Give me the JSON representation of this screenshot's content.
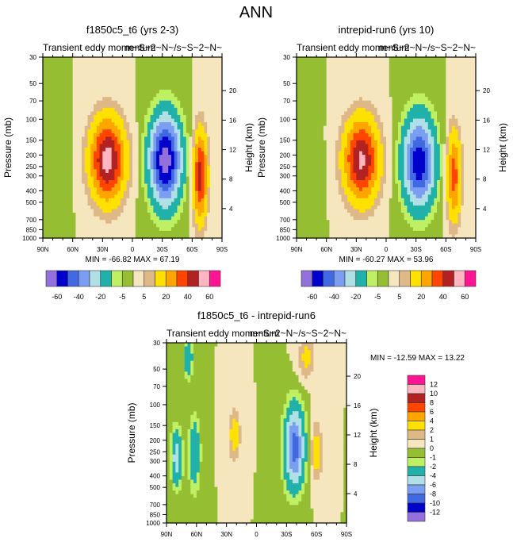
{
  "page_title": "ANN",
  "colors": {
    "levels_palette": [
      "#9370DB",
      "#0000CD",
      "#4169E1",
      "#7B9EF2",
      "#B0E0E6",
      "#20B2AA",
      "#BFF064",
      "#96BE32",
      "#F5E6BE",
      "#DEB887",
      "#FFE100",
      "#FFA500",
      "#FF4500",
      "#B22222",
      "#FFB6C1",
      "#FF1493"
    ]
  },
  "chart_data": [
    {
      "type": "heatmap",
      "id": "panel-1",
      "title": "f1850c5_t6 (yrs 2-3)",
      "subtitle_left": "Transient eddy momentum",
      "subtitle_right": "m~S~2~N~/s~S~2~N~",
      "xlabel": "",
      "ylabel": "Pressure (mb)",
      "ylabel_right": "Height (km)",
      "x_ticks": [
        "90N",
        "60N",
        "30N",
        "0",
        "30S",
        "60S",
        "90S"
      ],
      "x_range": [
        90,
        -90
      ],
      "y_ticks": [
        30,
        50,
        70,
        100,
        150,
        200,
        250,
        300,
        400,
        500,
        700,
        850,
        1000
      ],
      "y_range": [
        30,
        1000
      ],
      "y_scale": "log",
      "y_right_ticks": [
        4,
        8,
        12,
        16,
        20
      ],
      "stats": "MIN = -66.82  MAX =  67.19",
      "contour_levels": [
        -60,
        -50,
        -40,
        -30,
        -20,
        -10,
        -5,
        0,
        5,
        10,
        20,
        30,
        40,
        50,
        60
      ],
      "colorbar_labels": [
        "-60",
        "-40",
        "-20",
        "-5",
        "5",
        "20",
        "40",
        "60"
      ],
      "colorbar_orientation": "horizontal",
      "features": [
        {
          "lat": 25,
          "p": 220,
          "peak": 55,
          "sx": 12,
          "sy": 0.55
        },
        {
          "lat": -33,
          "p": 220,
          "peak": -66,
          "sx": 11,
          "sy": 0.6
        },
        {
          "lat": -68,
          "p": 300,
          "peak": 45,
          "sx": 5,
          "sy": 0.6
        },
        {
          "lat": 72,
          "p": 300,
          "peak": -4,
          "sx": 6,
          "sy": 0.7
        }
      ]
    },
    {
      "type": "heatmap",
      "id": "panel-2",
      "title": "intrepid-run6 (yrs 10)",
      "subtitle_left": "Transient eddy momentum",
      "subtitle_right": "m~S~2~N~/s~S~2~N~",
      "xlabel": "",
      "ylabel": "Pressure (mb)",
      "ylabel_right": "Height (km)",
      "x_ticks": [
        "90N",
        "60N",
        "30N",
        "0",
        "30S",
        "60S",
        "90S"
      ],
      "x_range": [
        90,
        -90
      ],
      "y_ticks": [
        30,
        50,
        70,
        100,
        150,
        200,
        250,
        300,
        400,
        500,
        700,
        850,
        1000
      ],
      "y_range": [
        30,
        1000
      ],
      "y_scale": "log",
      "y_right_ticks": [
        4,
        8,
        12,
        16,
        20
      ],
      "stats": "MIN = -60.27  MAX =  53.96",
      "contour_levels": [
        -60,
        -50,
        -40,
        -30,
        -20,
        -10,
        -5,
        0,
        5,
        10,
        20,
        30,
        40,
        50,
        60
      ],
      "colorbar_labels": [
        "-60",
        "-40",
        "-20",
        "-5",
        "5",
        "20",
        "40",
        "60"
      ],
      "colorbar_orientation": "horizontal",
      "features": [
        {
          "lat": 25,
          "p": 220,
          "peak": 52,
          "sx": 12,
          "sy": 0.55
        },
        {
          "lat": -33,
          "p": 230,
          "peak": -58,
          "sx": 11,
          "sy": 0.6
        },
        {
          "lat": -68,
          "p": 300,
          "peak": 35,
          "sx": 5,
          "sy": 0.6
        },
        {
          "lat": 72,
          "p": 300,
          "peak": -3,
          "sx": 6,
          "sy": 0.7
        }
      ]
    },
    {
      "type": "heatmap",
      "id": "panel-3",
      "title": "f1850c5_t6 - intrepid-run6",
      "subtitle_left": "Transient eddy momentum",
      "subtitle_right": "m~S~2~N~/s~S~2~N~",
      "xlabel": "",
      "ylabel": "Pressure (mb)",
      "ylabel_right": "Height (km)",
      "x_ticks": [
        "90N",
        "60N",
        "30N",
        "0",
        "30S",
        "60S",
        "90S"
      ],
      "x_range": [
        90,
        -90
      ],
      "y_ticks": [
        30,
        50,
        70,
        100,
        150,
        200,
        250,
        300,
        400,
        500,
        700,
        850,
        1000
      ],
      "y_range": [
        30,
        1000
      ],
      "y_scale": "log",
      "y_right_ticks": [
        4,
        8,
        12,
        16,
        20
      ],
      "stats": "MIN = -12.59  MAX =  13.22",
      "contour_levels": [
        -12,
        -10,
        -8,
        -6,
        -4,
        -2,
        -1,
        0,
        1,
        2,
        4,
        6,
        8,
        10,
        12
      ],
      "colorbar_labels": [
        "12",
        "10",
        "8",
        "6",
        "4",
        "2",
        "1",
        "0",
        "-1",
        "-2",
        "-4",
        "-6",
        "-8",
        "-10",
        "-12"
      ],
      "colorbar_orientation": "vertical",
      "features": [
        {
          "lat": -38,
          "p": 230,
          "peak": -9,
          "sx": 7,
          "sy": 0.55
        },
        {
          "lat": 80,
          "p": 280,
          "peak": -5,
          "sx": 4,
          "sy": 0.4
        },
        {
          "lat": 62,
          "p": 260,
          "peak": -4,
          "sx": 4,
          "sy": 0.5
        },
        {
          "lat": 22,
          "p": 180,
          "peak": 3,
          "sx": 4,
          "sy": 0.35
        },
        {
          "lat": -60,
          "p": 250,
          "peak": 3,
          "sx": 4,
          "sy": 0.4
        },
        {
          "lat": -50,
          "p": 40,
          "peak": 2.5,
          "sx": 6,
          "sy": 0.3
        },
        {
          "lat": 68,
          "p": 40,
          "peak": -4,
          "sx": 3,
          "sy": 0.3
        }
      ]
    }
  ]
}
